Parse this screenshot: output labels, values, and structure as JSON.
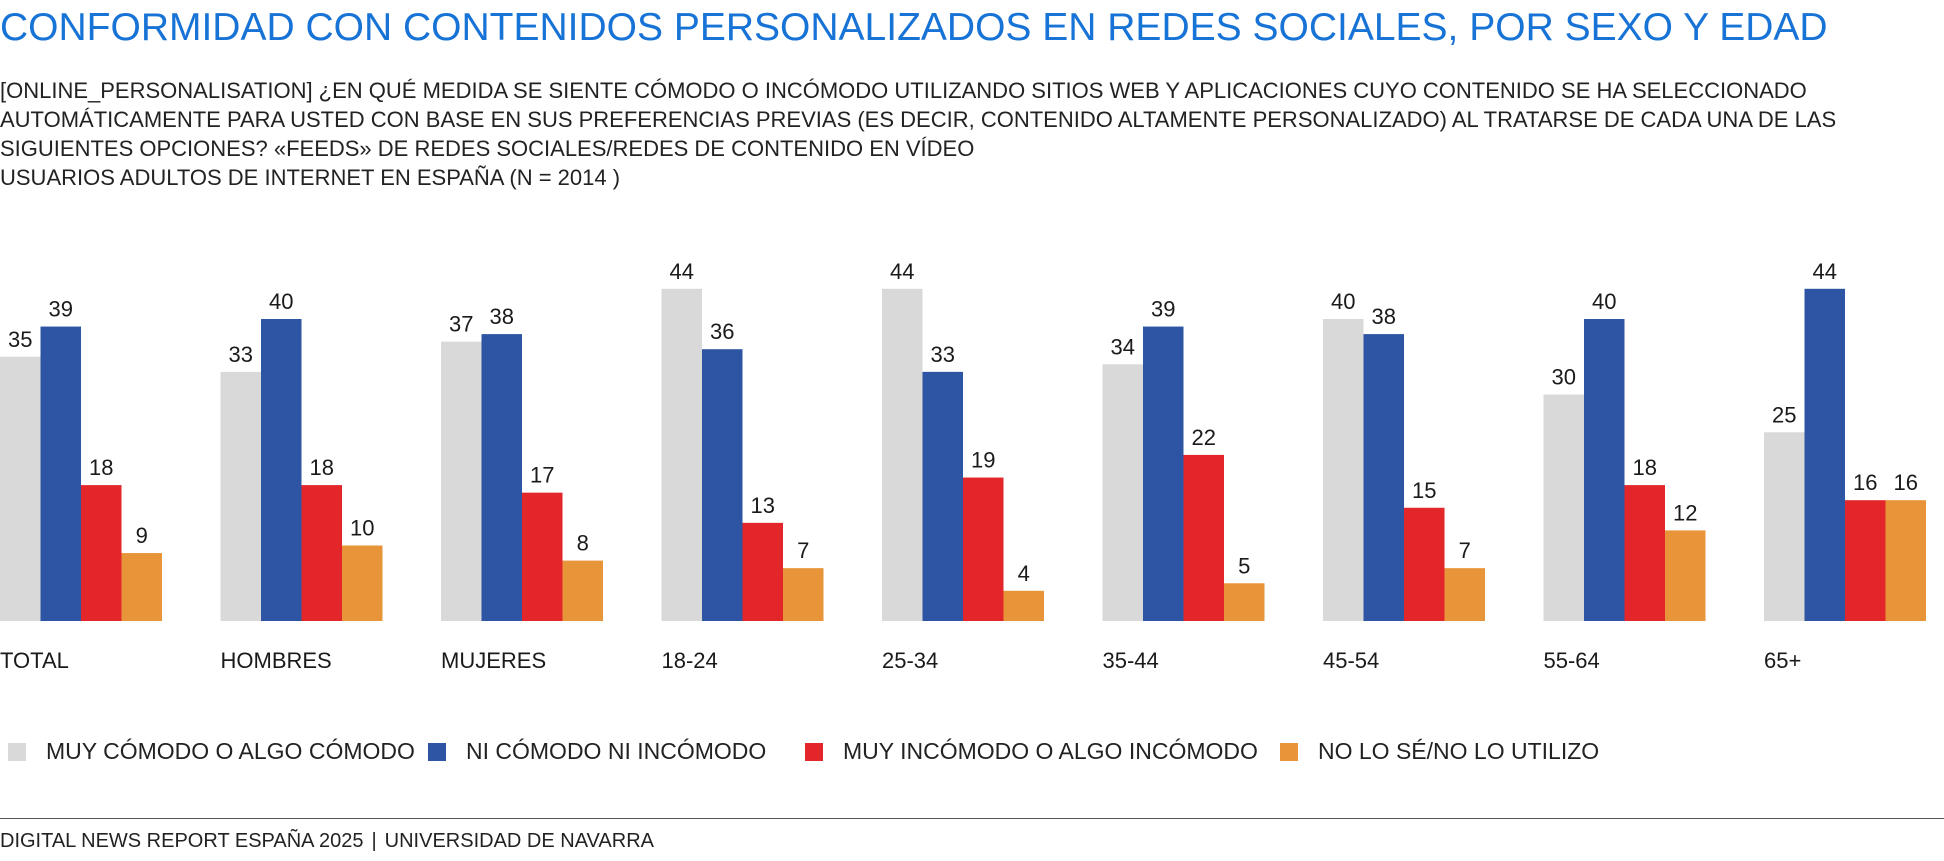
{
  "title": "CONFORMIDAD CON CONTENIDOS PERSONALIZADOS EN REDES SOCIALES, POR SEXO Y EDAD",
  "subtitle_lines": [
    "[ONLINE_PERSONALISATION] ¿EN QUÉ MEDIDA SE SIENTE CÓMODO O INCÓMODO UTILIZANDO SITIOS WEB Y APLICACIONES CUYO CONTENIDO SE HA SELECCIONADO",
    "AUTOMÁTICAMENTE PARA USTED CON BASE EN SUS PREFERENCIAS PREVIAS (ES DECIR, CONTENIDO ALTAMENTE PERSONALIZADO) AL TRATARSE DE CADA UNA DE LAS",
    "SIGUIENTES OPCIONES? «FEEDS» DE REDES SOCIALES/REDES DE CONTENIDO EN VÍDEO",
    "USUARIOS ADULTOS DE INTERNET EN ESPAÑA (N = 2014 )"
  ],
  "chart_data": {
    "type": "bar",
    "categories": [
      "TOTAL",
      "HOMBRES",
      "MUJERES",
      "18-24",
      "25-34",
      "35-44",
      "45-54",
      "55-64",
      "65+"
    ],
    "series": [
      {
        "name": "MUY CÓMODO O ALGO CÓMODO",
        "color": "#d9d9d9",
        "values": [
          35,
          33,
          37,
          44,
          44,
          34,
          40,
          30,
          25
        ]
      },
      {
        "name": "NI CÓMODO NI INCÓMODO",
        "color": "#2d55a4",
        "values": [
          39,
          40,
          38,
          36,
          33,
          39,
          38,
          40,
          44
        ]
      },
      {
        "name": "MUY INCÓMODO O ALGO INCÓMODO",
        "color": "#e3262a",
        "values": [
          18,
          18,
          17,
          13,
          19,
          22,
          15,
          18,
          16
        ]
      },
      {
        "name": "NO LO SÉ/NO LO UTILIZO",
        "color": "#e8953a",
        "values": [
          9,
          10,
          8,
          7,
          4,
          5,
          7,
          12,
          16
        ]
      }
    ],
    "ylim": [
      0,
      44
    ],
    "grid": false,
    "legend": "bottom",
    "data_labels": true
  },
  "footer": {
    "left": "DIGITAL NEWS REPORT ESPAÑA 2025",
    "separator": "|",
    "right": "UNIVERSIDAD DE NAVARRA"
  }
}
